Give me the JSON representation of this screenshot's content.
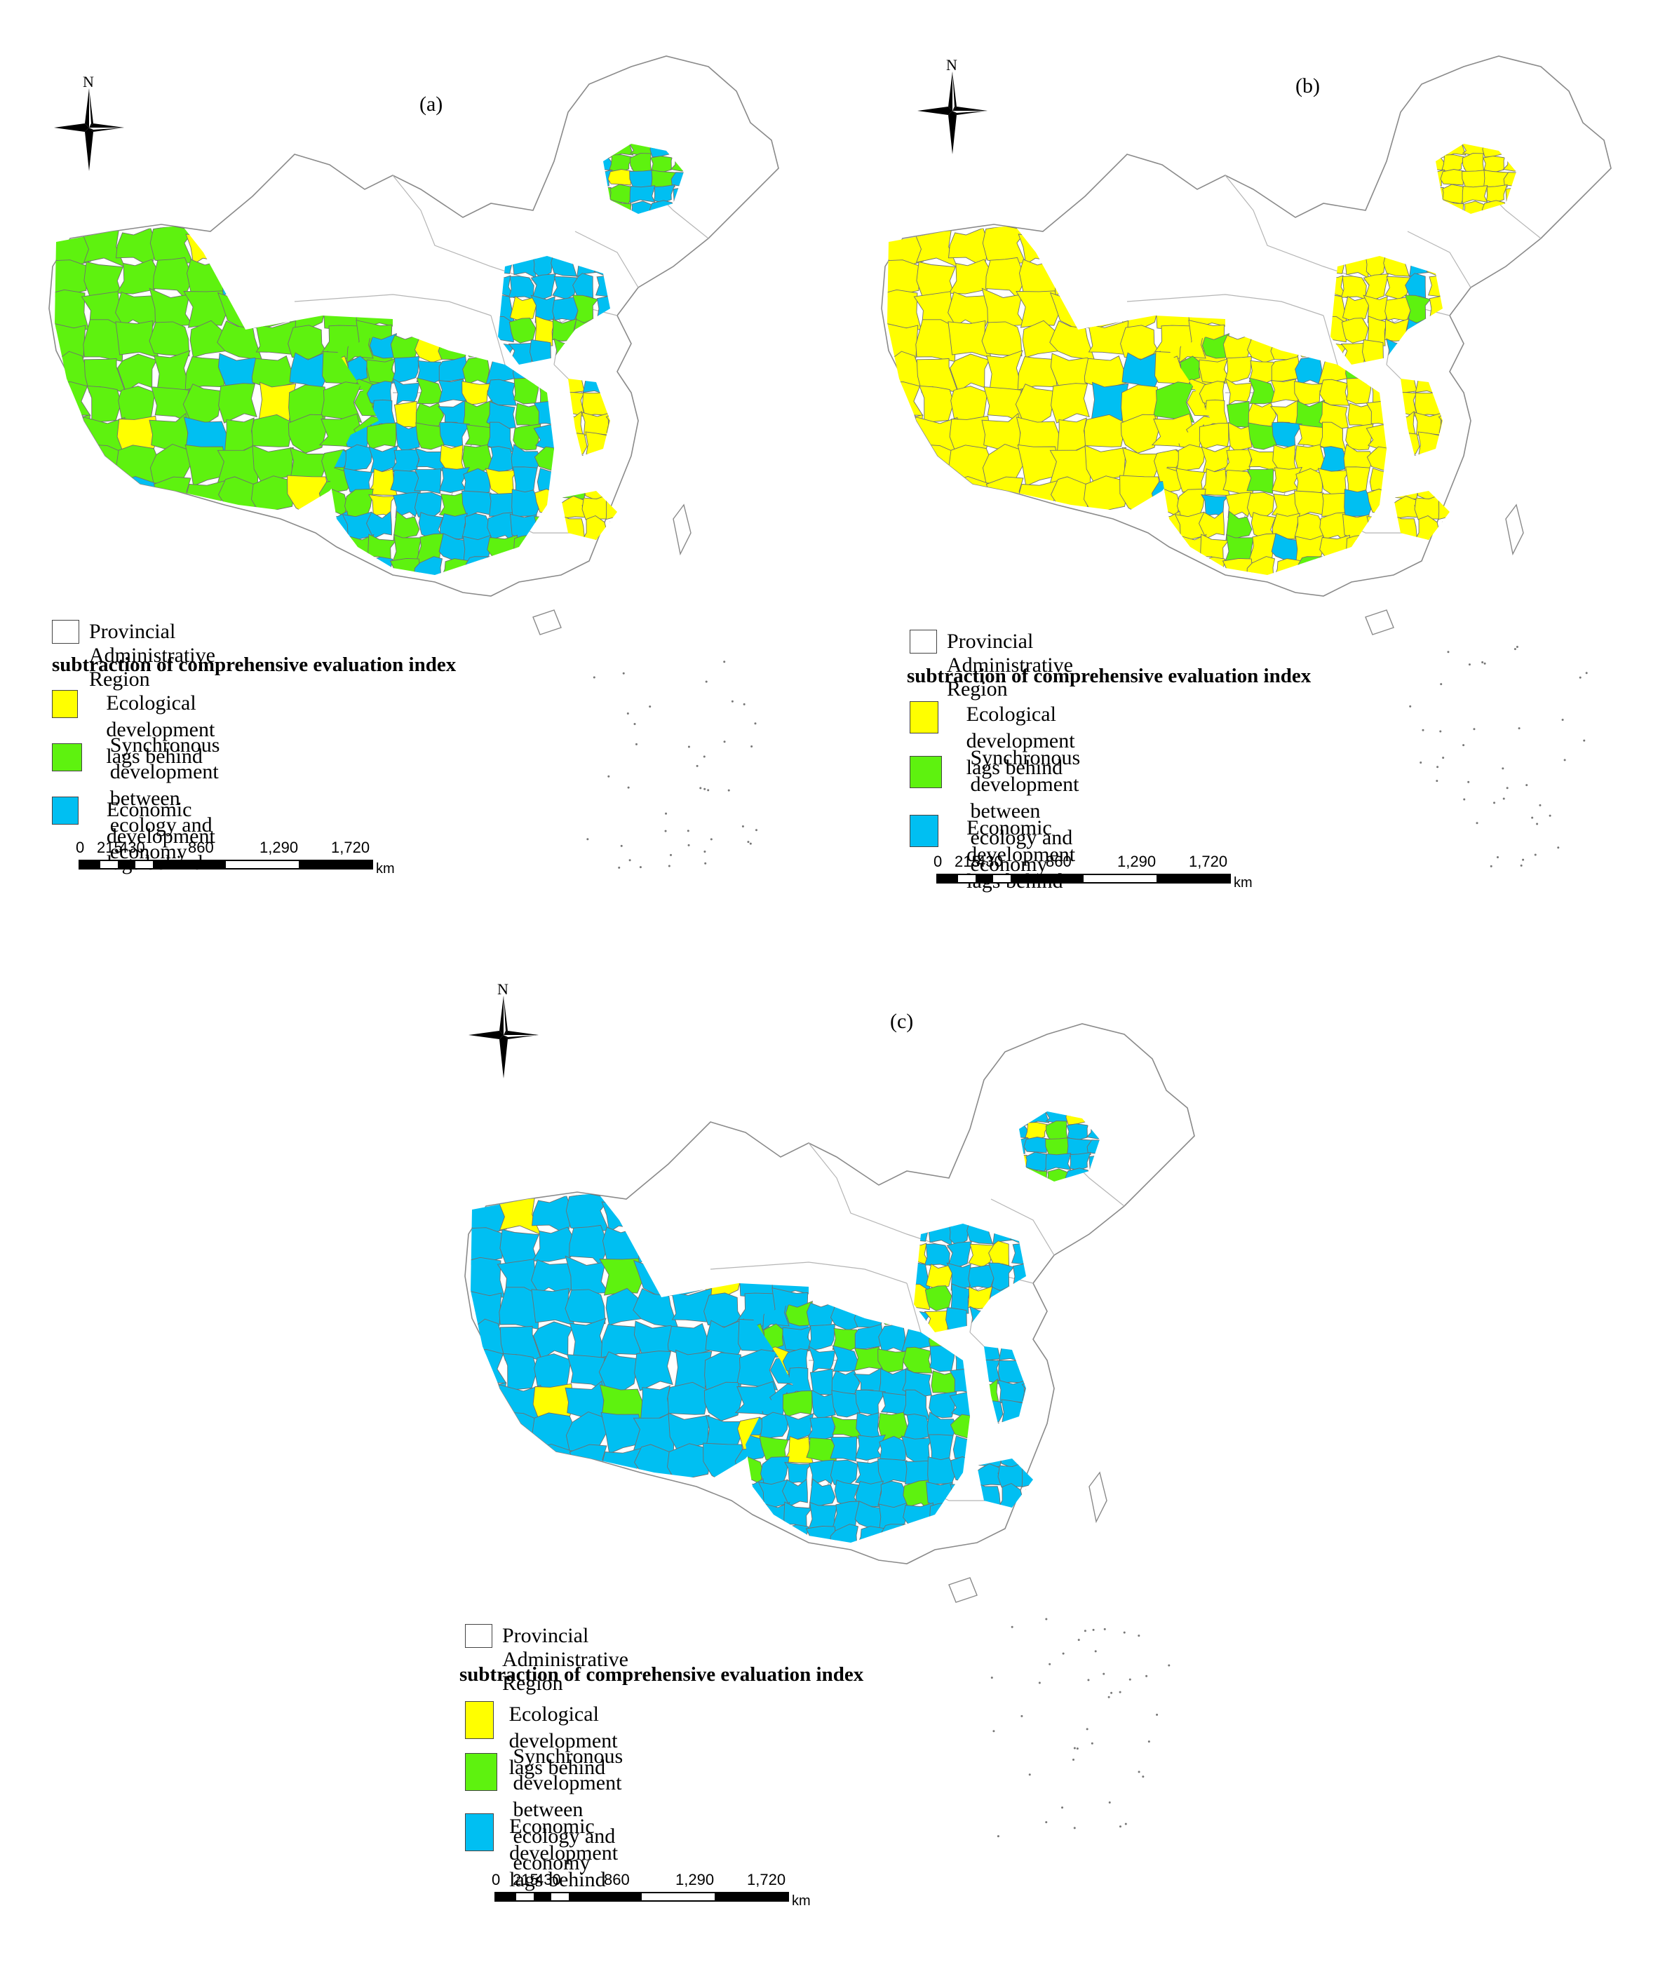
{
  "colors": {
    "ecological_lag": "#ffff00",
    "synchronous": "#5ef20f",
    "economic_lag": "#00bff2",
    "border": "#999999",
    "background": "#ffffff"
  },
  "legend": {
    "provincial": "Provincial Administrative Region",
    "title": "subtraction of comprehensive evaluation index",
    "ecological_lag": "Ecological development lags behind",
    "synchronous_line1": "Synchronous development",
    "synchronous_line2": "between ecology and economy",
    "economic_lag": "Economic development lags behind"
  },
  "scale": {
    "labels": [
      "0",
      "215",
      "430",
      "860",
      "1,290",
      "1,720"
    ],
    "unit": "km"
  },
  "north_label": "N",
  "panels": [
    {
      "label": "(a)",
      "dominant": "synchronous"
    },
    {
      "label": "(b)",
      "dominant": "ecological_lag"
    },
    {
      "label": "(c)",
      "dominant": "economic_lag"
    }
  ]
}
